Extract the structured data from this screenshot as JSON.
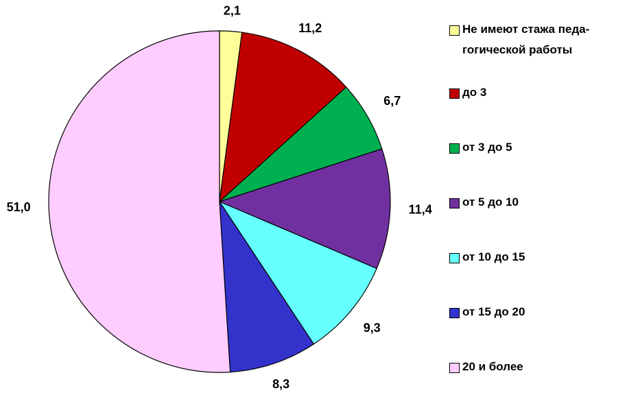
{
  "chart_data": {
    "type": "pie",
    "categories": [
      "Не имеют стажа педа-\nгогической работы",
      "до 3",
      "от 3 до 5",
      "от 5 до 10",
      "от 10 до 15",
      "от 15 до 20",
      "20 и более"
    ],
    "values": [
      2.1,
      11.2,
      6.7,
      11.4,
      9.3,
      8.3,
      51.0
    ],
    "value_labels": [
      "2,1",
      "11,2",
      "6,7",
      "11,4",
      "9,3",
      "8,3",
      "51,0"
    ],
    "colors": [
      "#ffff99",
      "#c00000",
      "#00b050",
      "#7030a0",
      "#66ffff",
      "#3333cc",
      "#ffccff"
    ],
    "legend": "right"
  }
}
